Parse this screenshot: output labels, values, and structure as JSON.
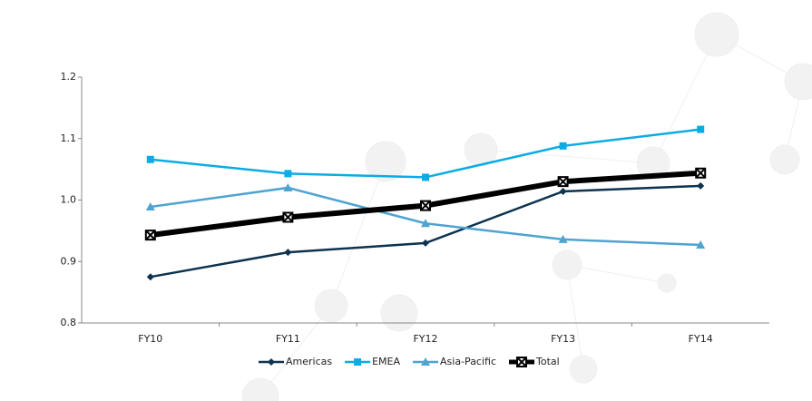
{
  "chart_data": {
    "type": "line",
    "categories": [
      "FY10",
      "FY11",
      "FY12",
      "FY13",
      "FY14"
    ],
    "series": [
      {
        "name": "Americas",
        "color": "#0d3350",
        "marker": "diamond",
        "values": [
          0.875,
          0.915,
          0.93,
          1.014,
          1.023
        ]
      },
      {
        "name": "EMEA",
        "color": "#0aace6",
        "marker": "square",
        "values": [
          1.066,
          1.043,
          1.037,
          1.088,
          1.115
        ]
      },
      {
        "name": "Asia-Pacific",
        "color": "#4fa3d1",
        "marker": "triangle",
        "values": [
          0.989,
          1.02,
          0.962,
          0.936,
          0.927
        ]
      },
      {
        "name": "Total",
        "color": "#000000",
        "marker": "x",
        "values": [
          0.943,
          0.972,
          0.991,
          1.03,
          1.044
        ]
      }
    ],
    "ylim": [
      0.8,
      1.2
    ],
    "yticks": [
      0.8,
      0.9,
      {
        "value": 1,
        "label": "1.0"
      },
      1.1,
      1.2
    ],
    "grid": false,
    "legend": "bottom"
  }
}
